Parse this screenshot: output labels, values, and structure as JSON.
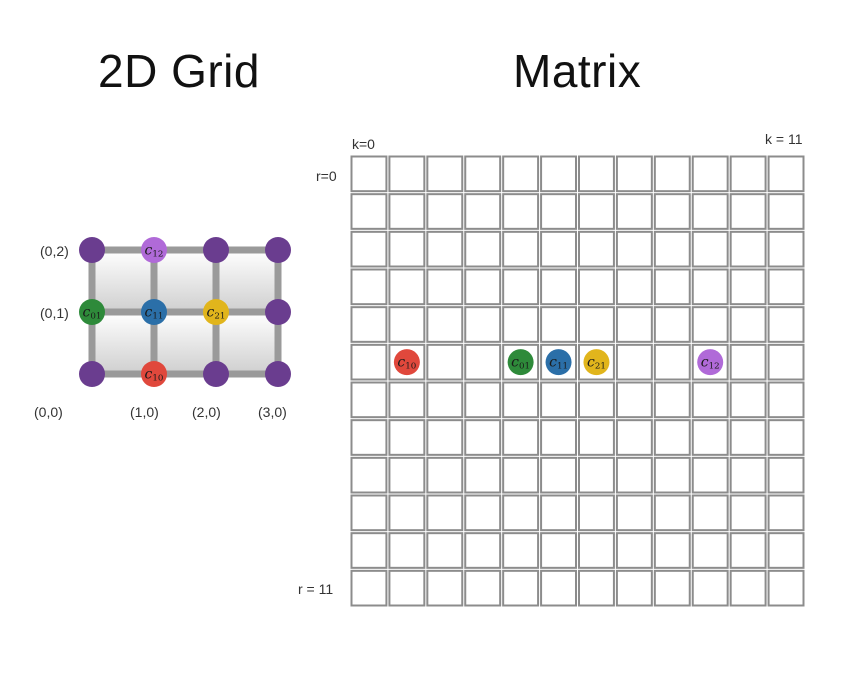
{
  "titles": {
    "left": "2D Grid",
    "right": "Matrix"
  },
  "grid": {
    "axis_labels": {
      "y0": "(0,0)",
      "y1": "(0,1)",
      "y2": "(0,2)",
      "x1": "(1,0)",
      "x2": "(2,0)",
      "x3": "(3,0)"
    },
    "nodes": [
      {
        "name": "node-0-0",
        "col": 0,
        "row": 0,
        "color": "#6a3d8f",
        "label": ""
      },
      {
        "name": "node-1-0",
        "col": 1,
        "row": 0,
        "color": "#e0483c",
        "label": "c",
        "sub": "10"
      },
      {
        "name": "node-2-0",
        "col": 2,
        "row": 0,
        "color": "#6a3d8f",
        "label": ""
      },
      {
        "name": "node-3-0",
        "col": 3,
        "row": 0,
        "color": "#6a3d8f",
        "label": ""
      },
      {
        "name": "node-0-1",
        "col": 0,
        "row": 1,
        "color": "#2e8a3a",
        "label": "c",
        "sub": "01"
      },
      {
        "name": "node-1-1",
        "col": 1,
        "row": 1,
        "color": "#2b6fa8",
        "label": "c",
        "sub": "11"
      },
      {
        "name": "node-2-1",
        "col": 2,
        "row": 1,
        "color": "#e1b51c",
        "label": "c",
        "sub": "21"
      },
      {
        "name": "node-3-1",
        "col": 3,
        "row": 1,
        "color": "#6a3d8f",
        "label": ""
      },
      {
        "name": "node-0-2",
        "col": 0,
        "row": 2,
        "color": "#6a3d8f",
        "label": ""
      },
      {
        "name": "node-1-2",
        "col": 1,
        "row": 2,
        "color": "#b06ad8",
        "label": "c",
        "sub": "12"
      },
      {
        "name": "node-2-2",
        "col": 2,
        "row": 2,
        "color": "#6a3d8f",
        "label": ""
      },
      {
        "name": "node-3-2",
        "col": 3,
        "row": 2,
        "color": "#6a3d8f",
        "label": ""
      }
    ]
  },
  "matrix": {
    "rows": 12,
    "cols": 12,
    "labels": {
      "k_start": "k=0",
      "k_end": "k = 11",
      "r_start": "r=0",
      "r_end": "r = 11"
    },
    "cells": [
      {
        "name": "cell-c10",
        "row": 5,
        "col": 1,
        "color": "#e0483c",
        "label": "c",
        "sub": "10"
      },
      {
        "name": "cell-c01",
        "row": 5,
        "col": 4,
        "color": "#2e8a3a",
        "label": "c",
        "sub": "01"
      },
      {
        "name": "cell-c11",
        "row": 5,
        "col": 5,
        "color": "#2b6fa8",
        "label": "c",
        "sub": "11"
      },
      {
        "name": "cell-c21",
        "row": 5,
        "col": 6,
        "color": "#e1b51c",
        "label": "c",
        "sub": "21"
      },
      {
        "name": "cell-c12",
        "row": 5,
        "col": 9,
        "color": "#b06ad8",
        "label": "c",
        "sub": "12"
      }
    ]
  }
}
